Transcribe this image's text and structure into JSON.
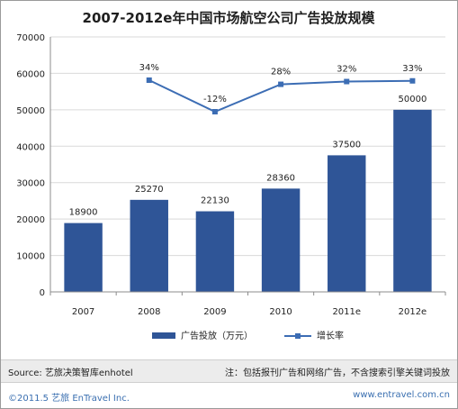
{
  "chart_data": {
    "type": "bar",
    "title": "2007-2012e年中国市场航空公司广告投放规模",
    "categories": [
      "2007",
      "2008",
      "2009",
      "2010",
      "2011e",
      "2012e"
    ],
    "ylim": [
      0,
      70000
    ],
    "yticks": [
      "0",
      "10000",
      "20000",
      "30000",
      "40000",
      "50000",
      "60000",
      "70000"
    ],
    "grid": true,
    "legend_position": "bottom",
    "series": [
      {
        "name": "广告投放（万元）",
        "type": "bar",
        "values": [
          18900,
          25270,
          22130,
          28360,
          37500,
          50000
        ],
        "labels": [
          "18900",
          "25270",
          "22130",
          "28360",
          "37500",
          "50000"
        ],
        "color": "#2f5597"
      },
      {
        "name": "增长率",
        "type": "line",
        "values": [
          null,
          34,
          -12,
          28,
          32,
          33
        ],
        "labels": [
          "",
          "34%",
          "-12%",
          "28%",
          "32%",
          "33%"
        ],
        "color": "#3c6db4"
      }
    ]
  },
  "footer": {
    "source": "Source:  艺旅决策智库enhotel",
    "note": "注：包括报刊广告和网络广告，不含搜索引擎关键词投放",
    "copyright": "©2011.5  艺旅 EnTravel Inc.",
    "website": "www.entravel.com.cn"
  }
}
